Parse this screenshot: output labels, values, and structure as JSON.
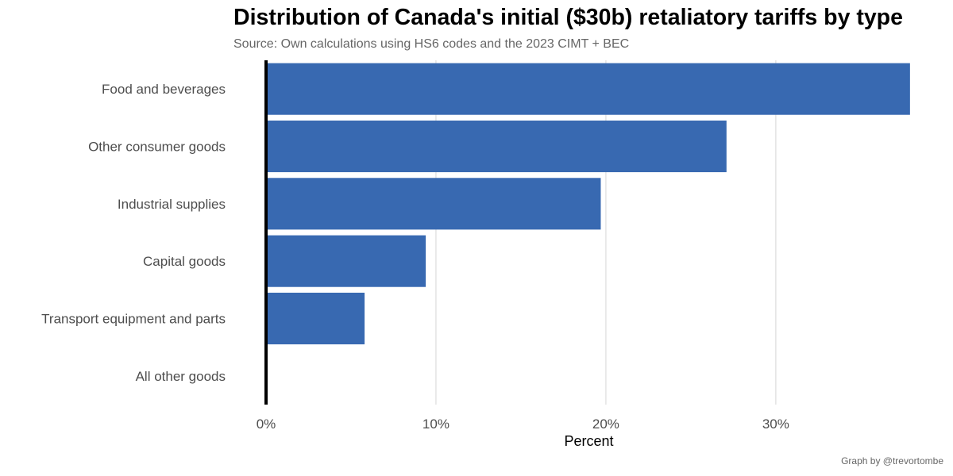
{
  "chart_data": {
    "type": "bar",
    "orientation": "horizontal",
    "title": "Distribution of Canada's initial ($30b) retaliatory tariffs by type",
    "subtitle": "Source: Own calculations using HS6 codes and the 2023 CIMT + BEC",
    "caption": "Graph by @trevortombe",
    "categories": [
      "Food and beverages",
      "Other consumer goods",
      "Industrial supplies",
      "Capital goods",
      "Transport equipment and parts",
      "All other goods"
    ],
    "values": [
      37.9,
      27.1,
      19.7,
      9.4,
      5.8,
      0.0
    ],
    "xlabel": "Percent",
    "ylabel": "",
    "xlim": [
      0,
      38
    ],
    "xticks": [
      0,
      10,
      20,
      30
    ],
    "xtick_labels": [
      "0%",
      "10%",
      "20%",
      "30%"
    ],
    "grid": "vertical major",
    "legend": "none",
    "bar_color": "#3869b1"
  }
}
